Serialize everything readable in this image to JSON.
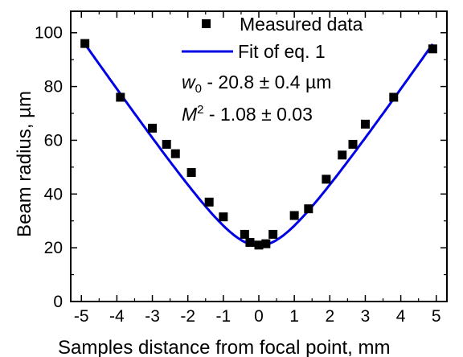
{
  "chart_data": {
    "type": "scatter",
    "xlabel": "Samples distance from focal point, mm",
    "ylabel": "Beam radius, µm",
    "xlim": [
      -5.3,
      5.3
    ],
    "ylim": [
      0,
      108
    ],
    "xticks": [
      "-5",
      "-4",
      "-3",
      "-2",
      "-1",
      "0",
      "1",
      "2",
      "3",
      "4",
      "5"
    ],
    "yticks": [
      "0",
      "20",
      "40",
      "60",
      "80",
      "100"
    ],
    "legend_position": "top-right",
    "series": [
      {
        "name": "Measured data",
        "kind": "points",
        "marker": "square",
        "color": "#000000",
        "x": [
          -4.9,
          -3.9,
          -3.0,
          -2.6,
          -2.35,
          -1.9,
          -1.4,
          -1.0,
          -0.4,
          -0.25,
          0.0,
          0.2,
          0.4,
          1.0,
          1.4,
          1.9,
          2.35,
          2.65,
          3.0,
          3.8,
          4.9
        ],
        "y": [
          96,
          76,
          64.5,
          58.5,
          55,
          48,
          37,
          31.5,
          25,
          22,
          21,
          21.5,
          25,
          32,
          34.5,
          45.5,
          54.5,
          58.5,
          66,
          76,
          94
        ]
      },
      {
        "name": "Fit of eq. 1",
        "kind": "line",
        "color": "#0000e6",
        "function": "w0*sqrt(1+(x/zR)^2)",
        "params": {
          "w0": 20.8,
          "zR": 1.09
        },
        "x_range": [
          -4.9,
          4.9
        ]
      }
    ],
    "annotations": [
      {
        "var": "w",
        "sub": "0",
        "text": " - 20.8 ± 0.4 µm"
      },
      {
        "var": "M",
        "sup": "2",
        "text": " - 1.08 ± 0.03"
      }
    ]
  }
}
